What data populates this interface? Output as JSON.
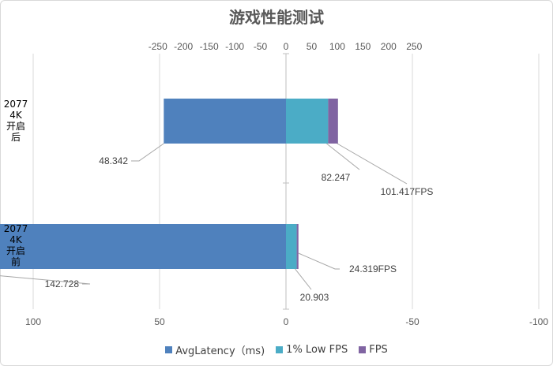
{
  "chart_data": {
    "type": "bar",
    "orientation": "horizontal",
    "title": "游戏性能测试",
    "categories": [
      {
        "lines": [
          "2077",
          "4K",
          "开启",
          "后"
        ]
      },
      {
        "lines": [
          "2077",
          "4K",
          "开启",
          "前"
        ]
      }
    ],
    "top_axis": {
      "ticks": [
        -250,
        -200,
        -150,
        -100,
        -50,
        0,
        50,
        100,
        150,
        200,
        250
      ]
    },
    "bottom_axis": {
      "ticks": [
        100,
        50,
        0,
        -50,
        -100
      ]
    },
    "series": [
      {
        "name": "AvgLatency（ms)",
        "color": "#4f81bd",
        "values": [
          48.342,
          142.728
        ],
        "labels": [
          "48.342",
          "142.728"
        ]
      },
      {
        "name": "1% Low FPS",
        "color": "#4bacc6",
        "values": [
          82.247,
          20.903
        ],
        "labels": [
          "82.247",
          "20.903"
        ]
      },
      {
        "name": "FPS",
        "color": "#8064a2",
        "values": [
          101.417,
          24.319
        ],
        "labels": [
          "101.417FPS",
          "24.319FPS"
        ]
      }
    ],
    "grid": true,
    "legend_position": "bottom"
  }
}
